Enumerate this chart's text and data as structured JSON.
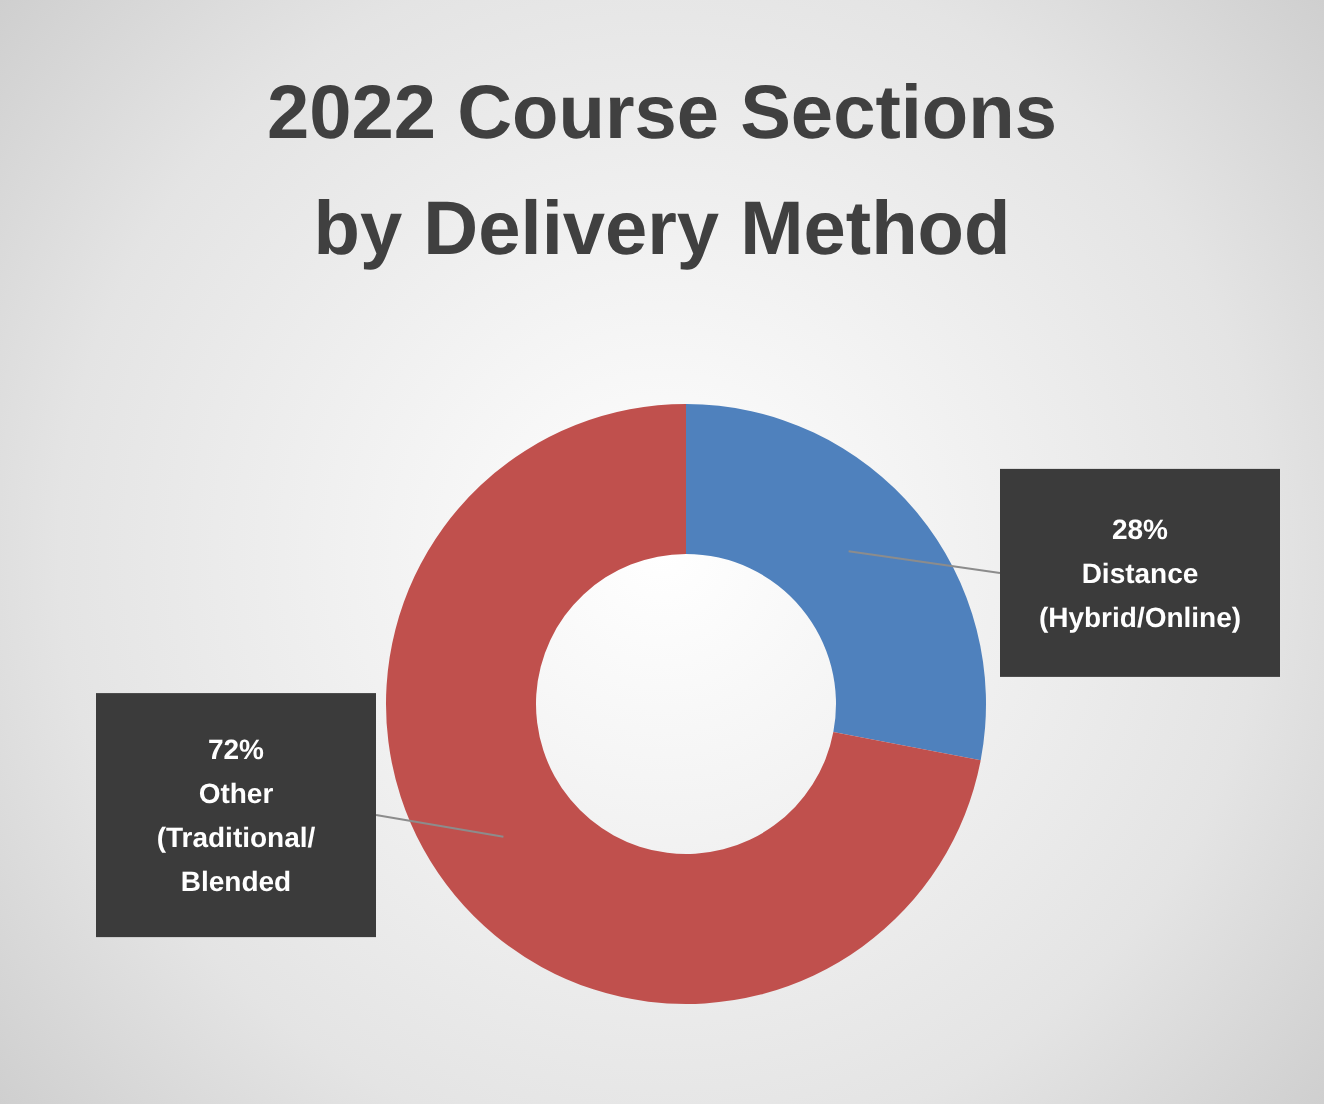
{
  "chart_data": {
    "type": "donut",
    "title": "2022 Course Sections by Delivery Method",
    "categories": [
      "Distance (Hybrid/Online)",
      "Other (Traditional/ Blended"
    ],
    "values": [
      28,
      72
    ],
    "colors": [
      "#4f81bd",
      "#c0504d"
    ],
    "value_labels": [
      "28%",
      "72%"
    ]
  }
}
